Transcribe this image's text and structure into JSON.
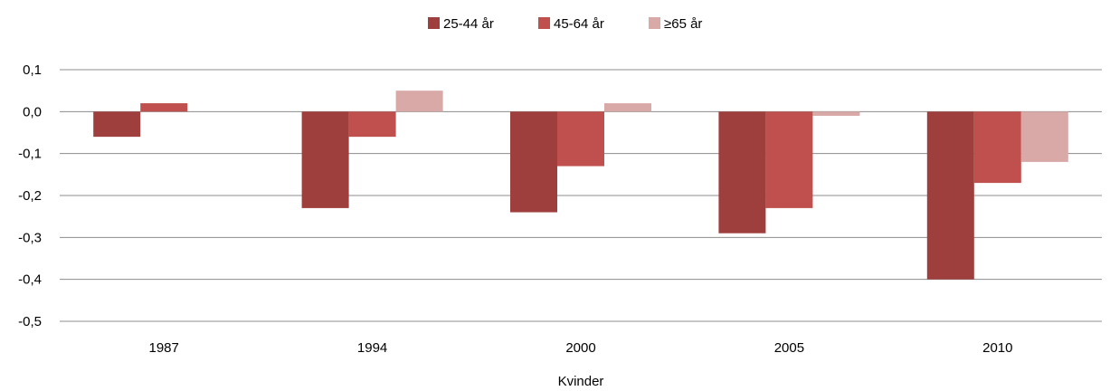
{
  "chart_data": {
    "type": "bar",
    "title": "",
    "xlabel": "Kvinder",
    "ylabel": "",
    "categories": [
      "1987",
      "1994",
      "2000",
      "2005",
      "2010"
    ],
    "series": [
      {
        "name": "25-44 år",
        "color": "#9e3f3d",
        "values": [
          -0.06,
          -0.23,
          -0.24,
          -0.29,
          -0.4
        ]
      },
      {
        "name": "45-64 år",
        "color": "#c0504d",
        "values": [
          0.02,
          -0.06,
          -0.13,
          -0.23,
          -0.17
        ]
      },
      {
        "name": "≥65 år",
        "color": "#d9a9a8",
        "values": [
          0.0,
          0.05,
          0.02,
          -0.01,
          -0.12
        ]
      }
    ],
    "ylim": [
      -0.5,
      0.1
    ],
    "yticks": [
      "0,1",
      "0,0",
      "-0,1",
      "-0,2",
      "-0,3",
      "-0,4",
      "-0,5"
    ],
    "ytick_values": [
      0.1,
      0.0,
      -0.1,
      -0.2,
      -0.3,
      -0.4,
      -0.5
    ],
    "grid": true,
    "legend_position": "top-center"
  }
}
